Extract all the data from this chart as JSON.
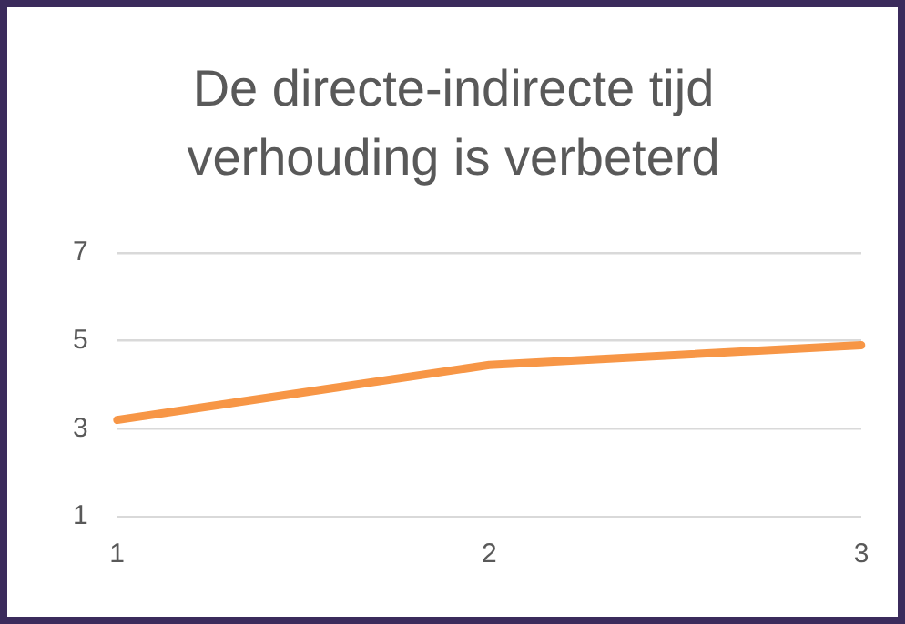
{
  "chart_data": {
    "type": "line",
    "title": "De directe-indirecte tijd verhouding is verbeterd",
    "categories": [
      "1",
      "2",
      "3"
    ],
    "series": [
      {
        "color": "#f79646",
        "values": [
          3.2,
          4.45,
          4.9
        ]
      }
    ],
    "ylim": [
      1,
      7
    ],
    "yticks": [
      1,
      3,
      5,
      7
    ],
    "grid": "y",
    "legend": false,
    "marker": "none",
    "line_style": "solid"
  }
}
